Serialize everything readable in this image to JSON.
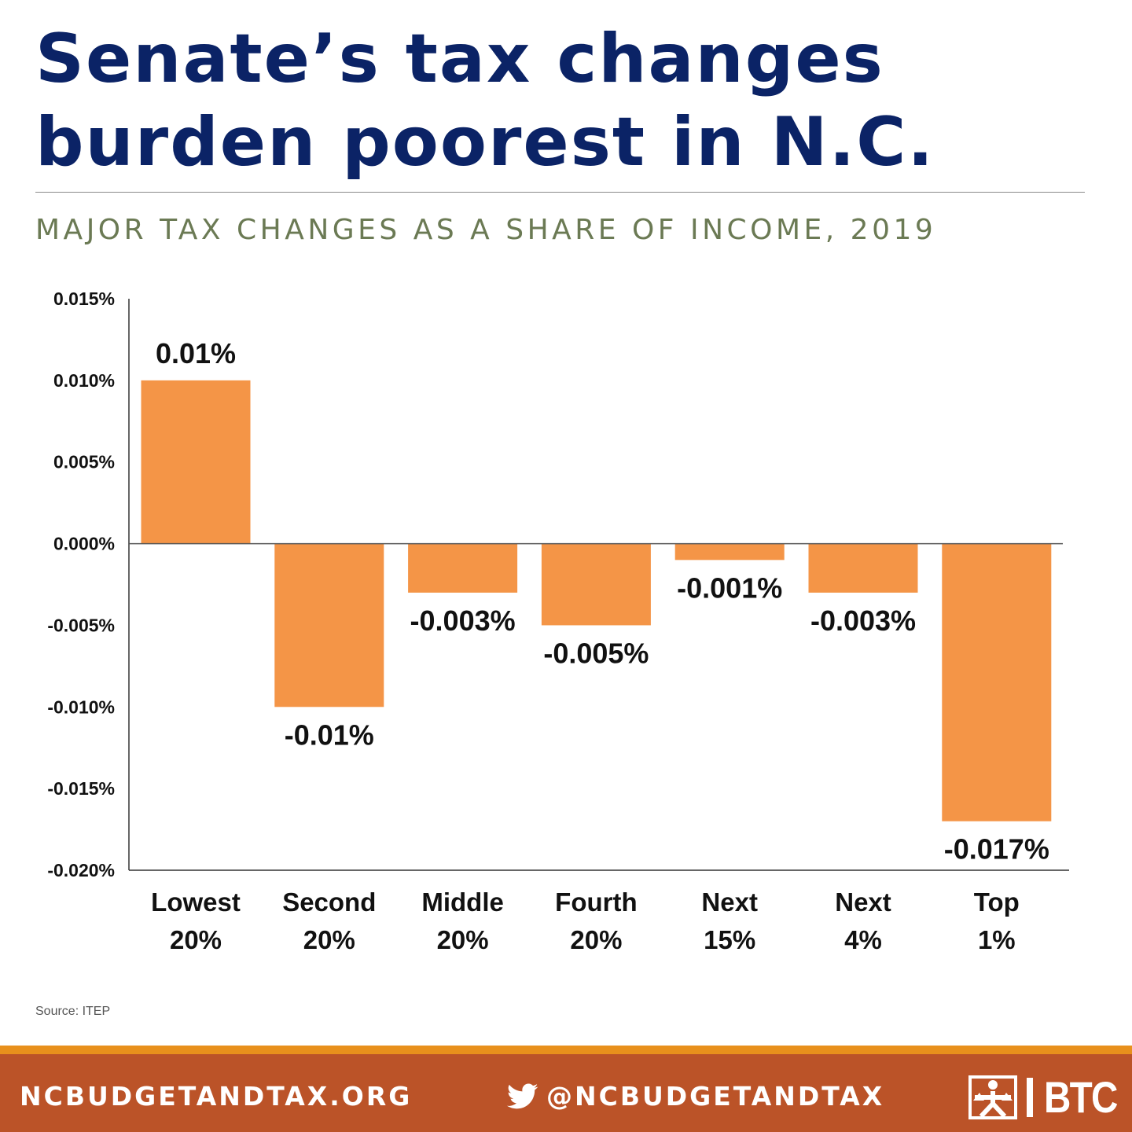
{
  "header": {
    "title_line1": "Senate’s tax changes",
    "title_line2": "burden poorest in N.C.",
    "subtitle": "MAJOR TAX CHANGES AS A SHARE OF INCOME, 2019"
  },
  "chart_data": {
    "type": "bar",
    "title": "",
    "xlabel": "",
    "ylabel": "",
    "categories": [
      [
        "Lowest",
        "20%"
      ],
      [
        "Second",
        "20%"
      ],
      [
        "Middle",
        "20%"
      ],
      [
        "Fourth",
        "20%"
      ],
      [
        "Next",
        "15%"
      ],
      [
        "Next",
        "4%"
      ],
      [
        "Top",
        "1%"
      ]
    ],
    "values": [
      0.01,
      -0.01,
      -0.003,
      -0.005,
      -0.001,
      -0.003,
      -0.017
    ],
    "data_labels": [
      "0.01%",
      "-0.01%",
      "-0.003%",
      "-0.005%",
      "-0.001%",
      "-0.003%",
      "-0.017%"
    ],
    "ylim": [
      -0.02,
      0.015
    ],
    "yticks": [
      0.015,
      0.01,
      0.005,
      0,
      -0.005,
      -0.01,
      -0.015,
      -0.02
    ],
    "ytick_labels": [
      "0.015%",
      "0.010%",
      "0.005%",
      "0.000%",
      "-0.005%",
      "-0.010%",
      "-0.015%",
      "-0.020%"
    ],
    "grid": false,
    "legend": "none",
    "bar_color": "#f49547"
  },
  "source": "Source: ITEP",
  "footer": {
    "site": "NCBUDGETANDTAX.ORG",
    "twitter": "@NCBUDGETANDTAX",
    "logo_text": "BTC",
    "icon": "twitter-bird-icon",
    "bar_color": "#bb5328",
    "stripe_color": "#e8901c"
  },
  "colors": {
    "title": "#0b2366",
    "subtitle": "#6b7a54"
  }
}
